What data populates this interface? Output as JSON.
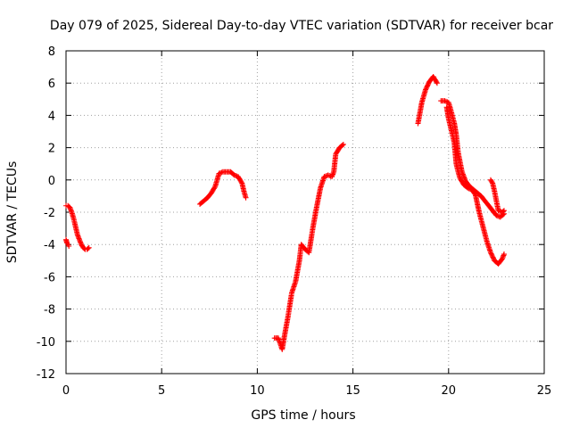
{
  "chart_data": {
    "type": "scatter",
    "title": "Day 079 of 2025, Sidereal Day-to-day VTEC variation (SDTVAR) for receiver bcar",
    "xlabel": "GPS time / hours",
    "ylabel": "SDTVAR / TECUs",
    "xlim": [
      0,
      25
    ],
    "ylim": [
      -12,
      8
    ],
    "xticks": [
      0,
      5,
      10,
      15,
      20,
      25
    ],
    "yticks": [
      -12,
      -10,
      -8,
      -6,
      -4,
      -2,
      0,
      2,
      4,
      6,
      8
    ],
    "grid": true,
    "marker": "plus",
    "color": "#ff0000",
    "segments": [
      [
        [
          0.0,
          -1.6
        ],
        [
          0.1,
          -1.6
        ],
        [
          0.2,
          -1.7
        ],
        [
          0.3,
          -2.0
        ],
        [
          0.4,
          -2.4
        ],
        [
          0.5,
          -2.9
        ],
        [
          0.6,
          -3.4
        ],
        [
          0.7,
          -3.7
        ],
        [
          0.8,
          -4.0
        ],
        [
          0.9,
          -4.2
        ],
        [
          1.0,
          -4.3
        ],
        [
          1.1,
          -4.3
        ],
        [
          1.2,
          -4.2
        ]
      ],
      [
        [
          0.0,
          -3.7
        ],
        [
          0.05,
          -3.9
        ],
        [
          0.1,
          -4.0
        ],
        [
          0.15,
          -4.1
        ]
      ],
      [
        [
          7.0,
          -1.5
        ],
        [
          7.2,
          -1.3
        ],
        [
          7.4,
          -1.1
        ],
        [
          7.6,
          -0.8
        ],
        [
          7.8,
          -0.4
        ],
        [
          8.0,
          0.4
        ],
        [
          8.2,
          0.5
        ],
        [
          8.4,
          0.5
        ],
        [
          8.6,
          0.5
        ],
        [
          8.8,
          0.3
        ],
        [
          9.0,
          0.2
        ],
        [
          9.2,
          -0.2
        ],
        [
          9.3,
          -0.7
        ],
        [
          9.4,
          -1.1
        ]
      ],
      [
        [
          10.9,
          -9.8
        ],
        [
          11.1,
          -9.8
        ],
        [
          11.3,
          -10.5
        ],
        [
          11.4,
          -9.8
        ],
        [
          11.6,
          -8.5
        ],
        [
          11.8,
          -7.0
        ],
        [
          12.0,
          -6.3
        ],
        [
          12.2,
          -5.0
        ],
        [
          12.3,
          -4.0
        ],
        [
          12.5,
          -4.3
        ],
        [
          12.7,
          -4.5
        ],
        [
          12.9,
          -3.0
        ],
        [
          13.1,
          -1.7
        ],
        [
          13.3,
          -0.5
        ],
        [
          13.5,
          0.2
        ],
        [
          13.7,
          0.3
        ],
        [
          13.9,
          0.2
        ],
        [
          14.0,
          0.5
        ],
        [
          14.1,
          1.6
        ],
        [
          14.3,
          2.0
        ],
        [
          14.5,
          2.2
        ]
      ],
      [
        [
          18.4,
          3.5
        ],
        [
          18.6,
          4.8
        ],
        [
          18.8,
          5.6
        ],
        [
          19.0,
          6.1
        ],
        [
          19.2,
          6.4
        ],
        [
          19.4,
          6.0
        ]
      ],
      [
        [
          19.6,
          4.9
        ],
        [
          19.8,
          4.9
        ],
        [
          20.0,
          4.8
        ],
        [
          20.1,
          4.4
        ],
        [
          20.3,
          3.5
        ],
        [
          20.4,
          2.8
        ],
        [
          20.5,
          1.7
        ],
        [
          20.7,
          0.5
        ],
        [
          20.9,
          -0.1
        ],
        [
          21.1,
          -0.4
        ],
        [
          21.3,
          -0.6
        ],
        [
          21.5,
          -0.8
        ],
        [
          21.7,
          -1.0
        ],
        [
          21.9,
          -1.3
        ],
        [
          22.1,
          -1.6
        ],
        [
          22.3,
          -1.9
        ],
        [
          22.5,
          -2.2
        ],
        [
          22.7,
          -2.3
        ],
        [
          22.9,
          -2.1
        ]
      ],
      [
        [
          19.9,
          4.5
        ],
        [
          20.0,
          3.8
        ],
        [
          20.1,
          3.3
        ],
        [
          20.2,
          2.8
        ],
        [
          20.3,
          2.3
        ],
        [
          20.4,
          1.0
        ],
        [
          20.5,
          0.5
        ],
        [
          20.6,
          0.1
        ],
        [
          20.8,
          -0.3
        ],
        [
          21.0,
          -0.5
        ],
        [
          21.2,
          -0.6
        ],
        [
          21.4,
          -0.9
        ],
        [
          21.6,
          -2.0
        ],
        [
          21.8,
          -2.9
        ],
        [
          22.0,
          -3.8
        ],
        [
          22.2,
          -4.5
        ],
        [
          22.4,
          -5.0
        ],
        [
          22.6,
          -5.2
        ],
        [
          22.8,
          -4.9
        ],
        [
          22.9,
          -4.6
        ]
      ],
      [
        [
          22.2,
          0.0
        ],
        [
          22.3,
          -0.2
        ],
        [
          22.4,
          -0.7
        ],
        [
          22.5,
          -1.3
        ],
        [
          22.6,
          -1.9
        ],
        [
          22.8,
          -2.0
        ],
        [
          22.9,
          -1.9
        ]
      ]
    ]
  }
}
